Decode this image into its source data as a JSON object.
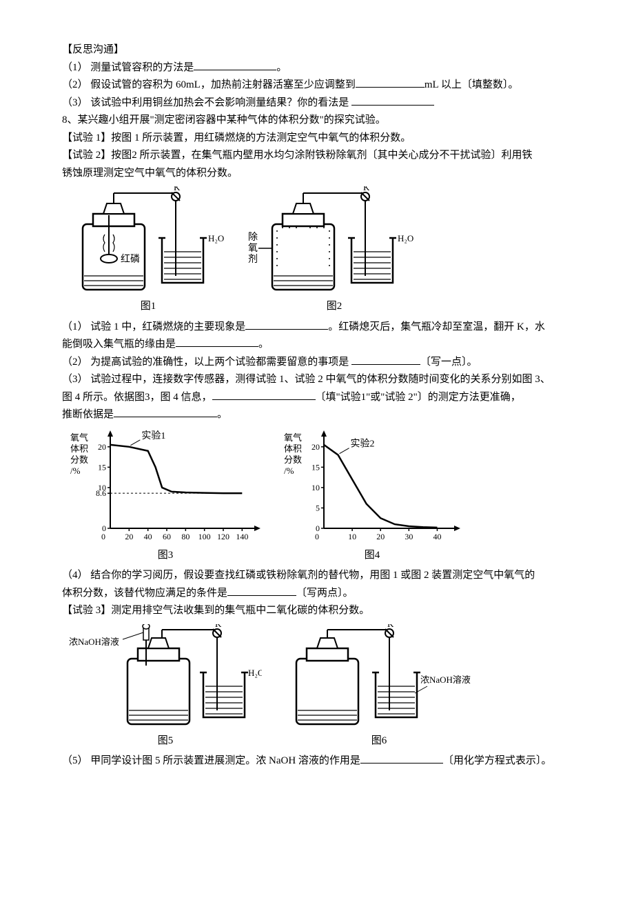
{
  "reflect_header": "【反思沟通】",
  "reflect": {
    "q1": "（1） 测量试管容积的方法是",
    "q1_end": "。",
    "q2a": "（2） 假设试管的容积为 60mL，加热前注射器活塞至少应调整到",
    "q2b": "mL 以上〔填整数〕。",
    "q3": "（3） 该试验中利用铜丝加热会不会影响测量结果？你的看法是"
  },
  "q8_intro": "8、某兴趣小组开展\"测定密闭容器中某种气体的体积分数\"的探究试验。",
  "exp1_line": "【试验 1】按图 1 所示装置，用红磷燃烧的方法测定空气中氧气的体积分数。",
  "exp2_line1": "【试验 2】按图2 所示装置，在集气瓶内壁用水均匀涂附铁粉除氧剂〔其中关心成分不干扰试验〕利用铁",
  "exp2_line2": "锈蚀原理测定空气中氧气的体积分数。",
  "apparatus": {
    "K": "K",
    "H2O": "H₂O",
    "hongling": "红磷",
    "chuyangji_1": "除",
    "chuyangji_2": "氧",
    "chuyangji_3": "剂",
    "naoh": "浓NaOH溶液",
    "fig1": "图1",
    "fig2": "图2",
    "fig3": "图3",
    "fig4": "图4",
    "fig5": "图5",
    "fig6": "图6"
  },
  "questions": {
    "q1a": "（1） 试验 1 中，红磷燃烧的主要现象是",
    "q1b": "。红磷熄灭后，集气瓶冷却至室温，翻开 K，水",
    "q1c": "能倒吸入集气瓶的缘由是",
    "q1d": "。",
    "q2a": "（2） 为提高试验的准确性，以上两个试验都需要留意的事项是",
    "q2b": "〔写一点〕。",
    "q3a": "（3） 试验过程中，连接数字传感器，测得试验 1、试验 2 中氧气的体积分数随时间变化的关系分别如图 3、",
    "q3b": "图 4 所示。依据图3，图 4 信息，",
    "q3c": "〔填\"试验1\"或\"试验 2\"〕的测定方法更准确，",
    "q3d": "推断依据是",
    "q3e": "。",
    "q4a": "（4） 结合你的学习阅历，假设要查找红磷或铁粉除氧剂的替代物，用图 1 或图 2 装置测定空气中氧气的",
    "q4b": "体积分数，该替代物应满足的条件是",
    "q4c": "〔写两点〕。"
  },
  "exp3_line": "【试验 3】测定用排空气法收集到的集气瓶中二氧化碳的体积分数。",
  "q5a": "（5） 甲同学设计图 5 所示装置进展测定。浓 NaOH 溶液的作用是",
  "q5b": "〔用化学方程式表示〕。",
  "chart": {
    "ylabel_1": "氧气",
    "ylabel_2": "体积",
    "ylabel_3": "分数",
    "ylabel_4": "/%",
    "exp1_label": "实验1",
    "exp2_label": "实验2",
    "g3_yticks": [
      "20",
      "15",
      "10",
      "8.6",
      "0"
    ],
    "g3_xticks": [
      "20",
      "40",
      "60",
      "80",
      "100",
      "120",
      "140"
    ],
    "g4_yticks": [
      "20",
      "15",
      "10",
      "5",
      "0"
    ],
    "g4_xticks": [
      "10",
      "20",
      "30",
      "40"
    ],
    "g3_points": [
      [
        0,
        20.5
      ],
      [
        20,
        20
      ],
      [
        40,
        19
      ],
      [
        48,
        15
      ],
      [
        55,
        10
      ],
      [
        65,
        9
      ],
      [
        80,
        8.8
      ],
      [
        100,
        8.7
      ],
      [
        120,
        8.6
      ],
      [
        140,
        8.6
      ]
    ],
    "g4_points": [
      [
        0,
        20.5
      ],
      [
        5,
        18
      ],
      [
        10,
        12
      ],
      [
        15,
        6
      ],
      [
        20,
        2.5
      ],
      [
        25,
        1
      ],
      [
        30,
        0.5
      ],
      [
        35,
        0.3
      ],
      [
        40,
        0.2
      ]
    ]
  },
  "colors": {
    "stroke": "#000000",
    "fill_liquid": "#ffffff",
    "bg": "#ffffff"
  }
}
